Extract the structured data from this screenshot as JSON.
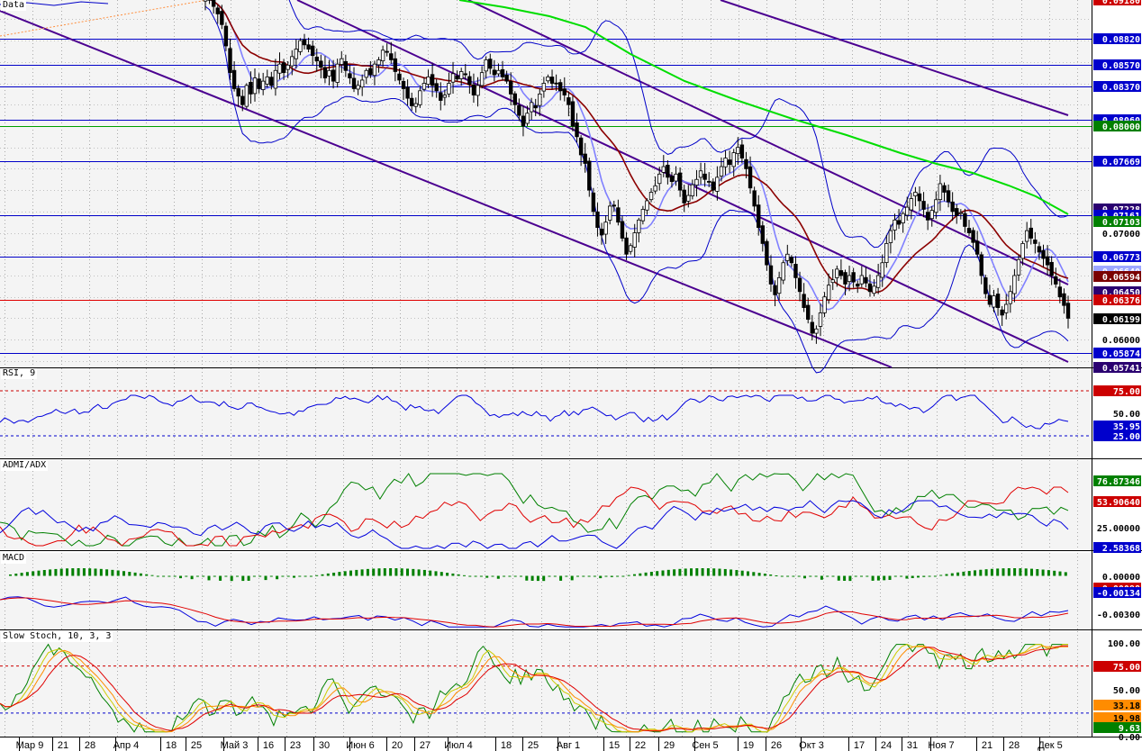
{
  "panes": {
    "price": {
      "title": "Data"
    },
    "rsi": {
      "title": "RSI, 9"
    },
    "admi": {
      "title": "ADMI/ADX"
    },
    "macd": {
      "title": "MACD"
    },
    "stoch": {
      "title": "Slow Stoch, 10, 3, 3"
    }
  },
  "x_axis_labels": [
    "Мар 9",
    "21",
    "28",
    "Апр 4",
    "18",
    "25",
    "Май 3",
    "16",
    "23",
    "30",
    "Июн 6",
    "20",
    "27",
    "Июл 4",
    "18",
    "25",
    "Авг 1",
    "15",
    "22",
    "29",
    "Сен 5",
    "19",
    "26",
    "Окт 3",
    "17",
    "24",
    "31",
    "Ноя 7",
    "21",
    "28",
    "Дек 5"
  ],
  "chart_data": [
    {
      "pane": "price",
      "type": "candlestick",
      "ylim": [
        0.0574,
        0.0918
      ],
      "closes": [
        0.092,
        0.0918,
        0.0912,
        0.0905,
        0.0895,
        0.0875,
        0.085,
        0.0835,
        0.0828,
        0.082,
        0.0838,
        0.083,
        0.0845,
        0.0835,
        0.0842,
        0.0846,
        0.0838,
        0.0852,
        0.0858,
        0.085,
        0.0857,
        0.0865,
        0.0872,
        0.088,
        0.0876,
        0.0872,
        0.0866,
        0.0861,
        0.0855,
        0.0845,
        0.0852,
        0.0842,
        0.0858,
        0.0863,
        0.0852,
        0.0845,
        0.0835,
        0.0838,
        0.0843,
        0.0852,
        0.0848,
        0.0858,
        0.0862,
        0.0871,
        0.0869,
        0.0862,
        0.0851,
        0.0843,
        0.0835,
        0.0826,
        0.0819,
        0.0821,
        0.0833,
        0.084,
        0.0846,
        0.0838,
        0.0833,
        0.0824,
        0.0829,
        0.084,
        0.0849,
        0.0844,
        0.0851,
        0.0848,
        0.0839,
        0.0829,
        0.0838,
        0.085,
        0.0862,
        0.0854,
        0.0848,
        0.0852,
        0.0846,
        0.0842,
        0.083,
        0.082,
        0.081,
        0.08,
        0.0812,
        0.0822,
        0.0817,
        0.083,
        0.084,
        0.0846,
        0.084,
        0.084,
        0.0833,
        0.0829,
        0.082,
        0.08,
        0.079,
        0.0773,
        0.0765,
        0.074,
        0.072,
        0.0705,
        0.0698,
        0.071,
        0.0725,
        0.0725,
        0.071,
        0.0695,
        0.068,
        0.0688,
        0.07,
        0.0712,
        0.0722,
        0.073,
        0.0738,
        0.0744,
        0.0755,
        0.0762,
        0.0752,
        0.0748,
        0.0755,
        0.074,
        0.0728,
        0.0735,
        0.0745,
        0.075,
        0.0758,
        0.075,
        0.0748,
        0.074,
        0.0752,
        0.0762,
        0.077,
        0.0764,
        0.0775,
        0.078,
        0.077,
        0.076,
        0.0742,
        0.0725,
        0.0705,
        0.069,
        0.067,
        0.0652,
        0.0642,
        0.0658,
        0.0672,
        0.068,
        0.0672,
        0.0658,
        0.0645,
        0.063,
        0.0619,
        0.0606,
        0.061,
        0.0625,
        0.064,
        0.0651,
        0.0656,
        0.0666,
        0.066,
        0.0652,
        0.066,
        0.0654,
        0.065,
        0.066,
        0.0653,
        0.0645,
        0.065,
        0.066,
        0.0672,
        0.069,
        0.0702,
        0.0712,
        0.0708,
        0.0718,
        0.0724,
        0.0732,
        0.0738,
        0.073,
        0.0722,
        0.0712,
        0.0721,
        0.0731,
        0.0746,
        0.0738,
        0.0729,
        0.072,
        0.0716,
        0.0719,
        0.0706,
        0.07,
        0.0691,
        0.068,
        0.066,
        0.0643,
        0.0633,
        0.0641,
        0.063,
        0.0623,
        0.0633,
        0.0645,
        0.066,
        0.0675,
        0.069,
        0.0702,
        0.0695,
        0.069,
        0.0682,
        0.0676,
        0.067,
        0.066,
        0.0652,
        0.064,
        0.0632,
        0.062
      ],
      "horizontal_levels": [
        {
          "label": "0.08820",
          "value": 0.0882,
          "color": "#0000c8"
        },
        {
          "label": "0.08570",
          "value": 0.0857,
          "color": "#0000c8"
        },
        {
          "label": "0.08370",
          "value": 0.0837,
          "color": "#0000c8"
        },
        {
          "label": "0.08060",
          "value": 0.0806,
          "color": "#0000c8"
        },
        {
          "label": "0.08000",
          "value": 0.08,
          "color": "#00a000"
        },
        {
          "label": "0.07669",
          "value": 0.07669,
          "color": "#0000c8"
        },
        {
          "label": "0.07161",
          "value": 0.07161,
          "color": "#0000c8"
        },
        {
          "label": "0.06773",
          "value": 0.06773,
          "color": "#0000c8"
        },
        {
          "label": "0.06376",
          "value": 0.06376,
          "color": "#e00000"
        },
        {
          "label": "0.05874",
          "value": 0.05874,
          "color": "#0000c8"
        }
      ],
      "axis_labels": [
        {
          "label": "0.09180",
          "value": 0.0918,
          "style": "red"
        },
        {
          "label": "0.08820",
          "value": 0.0882,
          "style": "blue"
        },
        {
          "label": "0.08570",
          "value": 0.0857,
          "style": "blue"
        },
        {
          "label": "0.08370",
          "value": 0.0837,
          "style": "blue"
        },
        {
          "label": "0.08060",
          "value": 0.0806,
          "style": "blue"
        },
        {
          "label": "0.08000",
          "value": 0.08,
          "style": "green"
        },
        {
          "label": "0.07669",
          "value": 0.07669,
          "style": "blue"
        },
        {
          "label": "0.07228",
          "value": 0.07228,
          "style": "navy"
        },
        {
          "label": "0.07161",
          "value": 0.07161,
          "style": "blue"
        },
        {
          "label": "0.07103",
          "value": 0.07103,
          "style": "green"
        },
        {
          "label": "0.07000",
          "value": 0.07,
          "style": "plain"
        },
        {
          "label": "0.06773",
          "value": 0.06773,
          "style": "blue"
        },
        {
          "label": "0.06640",
          "value": 0.0664,
          "style": "lightblue"
        },
        {
          "label": "0.06594",
          "value": 0.06594,
          "style": "darkred"
        },
        {
          "label": "0.06450",
          "value": 0.0645,
          "style": "navy"
        },
        {
          "label": "0.06376",
          "value": 0.06376,
          "style": "red"
        },
        {
          "label": "0.06199",
          "value": 0.06199,
          "style": "black"
        },
        {
          "label": "0.06000",
          "value": 0.06,
          "style": "plain"
        },
        {
          "label": "0.05874",
          "value": 0.05874,
          "style": "blue"
        },
        {
          "label": "0.05741",
          "value": 0.05741,
          "style": "navy"
        }
      ]
    },
    {
      "pane": "rsi",
      "type": "line",
      "ylim": [
        0,
        100
      ],
      "levels": [
        {
          "label": "75.00",
          "value": 75,
          "style": "red"
        },
        {
          "label": "50.00",
          "value": 50,
          "style": "plain"
        },
        {
          "label": "35.95",
          "value": 35.95,
          "style": "blue"
        },
        {
          "label": "25.00",
          "value": 25,
          "style": "blue"
        }
      ]
    },
    {
      "pane": "admi",
      "type": "line",
      "ylim": [
        0,
        100
      ],
      "levels": [
        {
          "label": "76.87346",
          "value": 76.87,
          "style": "green"
        },
        {
          "label": "53.90640",
          "value": 53.91,
          "style": "red"
        },
        {
          "label": "25.00000",
          "value": 25,
          "style": "plain"
        },
        {
          "label": "2.58368",
          "value": 2.58,
          "style": "blue"
        }
      ]
    },
    {
      "pane": "macd",
      "type": "line+histogram",
      "ylim": [
        -0.0042,
        0.0018
      ],
      "levels": [
        {
          "label": "0.00000",
          "value": 0.0,
          "style": "plain"
        },
        {
          "label": "-0.00098",
          "value": -0.00098,
          "style": "red"
        },
        {
          "label": "-0.00134",
          "value": -0.00134,
          "style": "blue"
        },
        {
          "label": "-0.00300",
          "value": -0.003,
          "style": "plain"
        }
      ]
    },
    {
      "pane": "stoch",
      "type": "line",
      "ylim": [
        0,
        112
      ],
      "levels": [
        {
          "label": "100.00",
          "value": 100,
          "style": "plain"
        },
        {
          "label": "75.00",
          "value": 75,
          "style": "red"
        },
        {
          "label": "50.00",
          "value": 50,
          "style": "plain"
        },
        {
          "label": "33.18",
          "value": 33.18,
          "style": "orange"
        },
        {
          "label": "19.98",
          "value": 19.98,
          "style": "orange"
        },
        {
          "label": "9.63",
          "value": 9.63,
          "style": "green"
        },
        {
          "label": "0.00",
          "value": 0,
          "style": "plain"
        }
      ]
    }
  ],
  "colors": {
    "background": "#f4f4f4",
    "grid": "#8c8c8c",
    "candle_up": "#ffffff",
    "candle_down": "#000000",
    "bollinger": "#0000c8",
    "ma_fast": "#8080ff",
    "ma_slow": "#8b0000",
    "ma_long": "#00dd00",
    "channel": "#4b0090",
    "rsi": "#0000dd",
    "adx_plus": "#008000",
    "adx_minus": "#e00000",
    "adx_line": "#0000dd",
    "macd_line": "#0000dd",
    "macd_signal": "#e00000",
    "macd_hist": "#008000",
    "stoch_k": "#008000",
    "stoch_d": "#ff8c00",
    "stoch_slow": "#e00000"
  }
}
